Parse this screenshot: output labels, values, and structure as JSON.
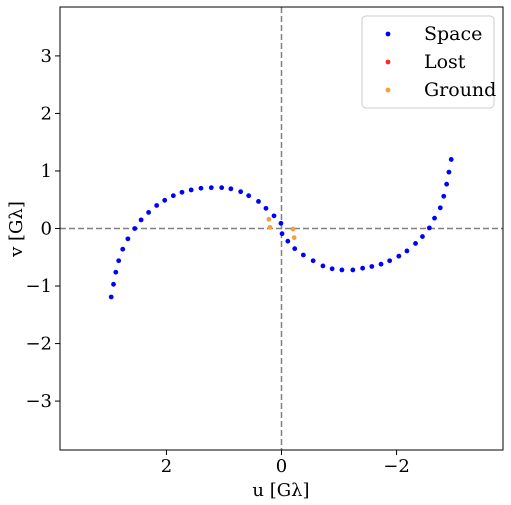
{
  "chart_data": {
    "type": "scatter",
    "title": "",
    "xlabel": "u [Gλ]",
    "ylabel": "v [Gλ]",
    "xlim": [
      3.85,
      -3.85
    ],
    "ylim": [
      -3.85,
      3.85
    ],
    "x_inverted": true,
    "xticks": [
      2,
      0,
      -2
    ],
    "xtick_labels": [
      "2",
      "0",
      "−2"
    ],
    "yticks": [
      3,
      2,
      1,
      0,
      -1,
      -2,
      -3
    ],
    "ytick_labels": [
      "3",
      "2",
      "1",
      "0",
      "−1",
      "−2",
      "−3"
    ],
    "grid": false,
    "reference_lines": {
      "x": 0,
      "y": 0,
      "style": "dashed",
      "color": "#808080"
    },
    "legend": {
      "position": "top-right"
    },
    "series": [
      {
        "name": "Space",
        "color": "#0000ff",
        "points": [
          [
            2.96,
            -1.19
          ],
          [
            2.92,
            -0.97
          ],
          [
            2.88,
            -0.76
          ],
          [
            2.83,
            -0.56
          ],
          [
            2.76,
            -0.36
          ],
          [
            2.67,
            -0.18
          ],
          [
            2.55,
            0.0
          ],
          [
            2.44,
            0.15
          ],
          [
            2.31,
            0.28
          ],
          [
            2.17,
            0.4
          ],
          [
            2.03,
            0.49
          ],
          [
            1.88,
            0.57
          ],
          [
            1.73,
            0.63
          ],
          [
            1.57,
            0.67
          ],
          [
            1.4,
            0.7
          ],
          [
            1.22,
            0.71
          ],
          [
            1.04,
            0.71
          ],
          [
            0.88,
            0.69
          ],
          [
            0.71,
            0.64
          ],
          [
            0.57,
            0.57
          ],
          [
            0.4,
            0.47
          ],
          [
            0.27,
            0.35
          ],
          [
            0.13,
            0.22
          ],
          [
            0.01,
            0.09
          ],
          [
            -0.01,
            -0.09
          ],
          [
            -0.11,
            -0.22
          ],
          [
            -0.23,
            -0.35
          ],
          [
            -0.38,
            -0.46
          ],
          [
            -0.55,
            -0.56
          ],
          [
            -0.72,
            -0.65
          ],
          [
            -0.88,
            -0.7
          ],
          [
            -1.05,
            -0.72
          ],
          [
            -1.24,
            -0.72
          ],
          [
            -1.41,
            -0.69
          ],
          [
            -1.57,
            -0.66
          ],
          [
            -1.73,
            -0.62
          ],
          [
            -1.88,
            -0.56
          ],
          [
            -2.04,
            -0.48
          ],
          [
            -2.18,
            -0.39
          ],
          [
            -2.33,
            -0.26
          ],
          [
            -2.45,
            -0.14
          ],
          [
            -2.57,
            0.01
          ],
          [
            -2.66,
            0.18
          ],
          [
            -2.76,
            0.36
          ],
          [
            -2.82,
            0.56
          ],
          [
            -2.87,
            0.77
          ],
          [
            -2.91,
            0.98
          ],
          [
            -2.95,
            1.2
          ]
        ]
      },
      {
        "name": "Lost",
        "color": "#ff2a1a",
        "points": []
      },
      {
        "name": "Ground",
        "color": "#f2a040",
        "points": [
          [
            0.22,
            0.16
          ],
          [
            0.2,
            0.02
          ],
          [
            -0.2,
            -0.01
          ],
          [
            -0.22,
            -0.16
          ]
        ]
      }
    ]
  }
}
